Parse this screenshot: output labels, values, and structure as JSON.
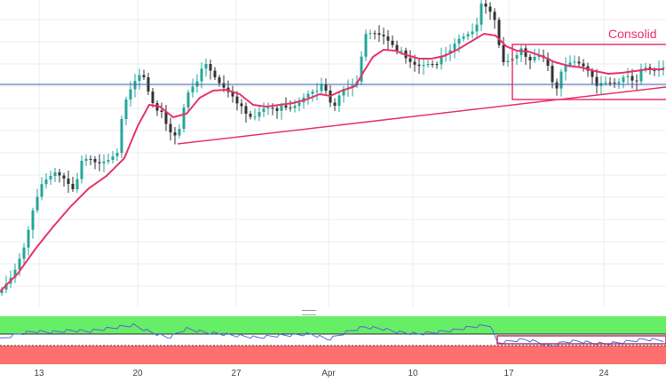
{
  "annotation": {
    "label": "Consolid"
  },
  "x_axis": {
    "labels": [
      "13",
      "20",
      "27",
      "Apr",
      "10",
      "17",
      "24"
    ]
  },
  "colors": {
    "bull": "#26a69a",
    "bear": "#333333",
    "ema": "#e8336b",
    "trendline": "#e8336b",
    "hline": "#3b5ba7",
    "rsi_line": "#4f6bd8",
    "overbought_band": "#66ee66",
    "oversold_band": "#ff6f6f",
    "grid": "#e9edf2"
  },
  "chart_data": [
    {
      "type": "candlestick",
      "ema_overlay": true,
      "grid": true,
      "horizontal_line": true,
      "ascending_trendline": true,
      "consolidation_box": true
    },
    {
      "type": "line",
      "indicator": "oscillator",
      "bands": [
        "overbought",
        "oversold"
      ],
      "consolidation_box": true
    }
  ]
}
